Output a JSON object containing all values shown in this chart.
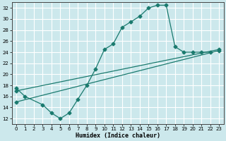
{
  "xlabel": "Humidex (Indice chaleur)",
  "background_color": "#cce8ec",
  "grid_color": "#ffffff",
  "line_color": "#1a7a6e",
  "xlim": [
    -0.5,
    23.5
  ],
  "ylim": [
    11,
    33
  ],
  "yticks": [
    12,
    14,
    16,
    18,
    20,
    22,
    24,
    26,
    28,
    30,
    32
  ],
  "xticks": [
    0,
    1,
    2,
    3,
    4,
    5,
    6,
    7,
    8,
    9,
    10,
    11,
    12,
    13,
    14,
    15,
    16,
    17,
    18,
    19,
    20,
    21,
    22,
    23
  ],
  "line1_x": [
    0,
    1,
    3,
    4,
    5,
    6,
    7,
    8,
    9,
    10,
    11,
    12,
    13,
    14,
    15,
    16,
    17,
    18,
    19,
    20,
    21,
    22
  ],
  "line1_y": [
    17.5,
    16.0,
    14.5,
    13.0,
    12.0,
    13.0,
    15.5,
    18.0,
    21.0,
    24.5,
    25.5,
    28.5,
    29.5,
    30.5,
    32.0,
    32.5,
    32.5,
    25.0,
    24.0,
    24.0,
    24.0,
    24.0
  ],
  "line2_x": [
    0,
    23
  ],
  "line2_y": [
    17.0,
    24.5
  ],
  "line3_x": [
    0,
    23
  ],
  "line3_y": [
    15.0,
    24.3
  ]
}
